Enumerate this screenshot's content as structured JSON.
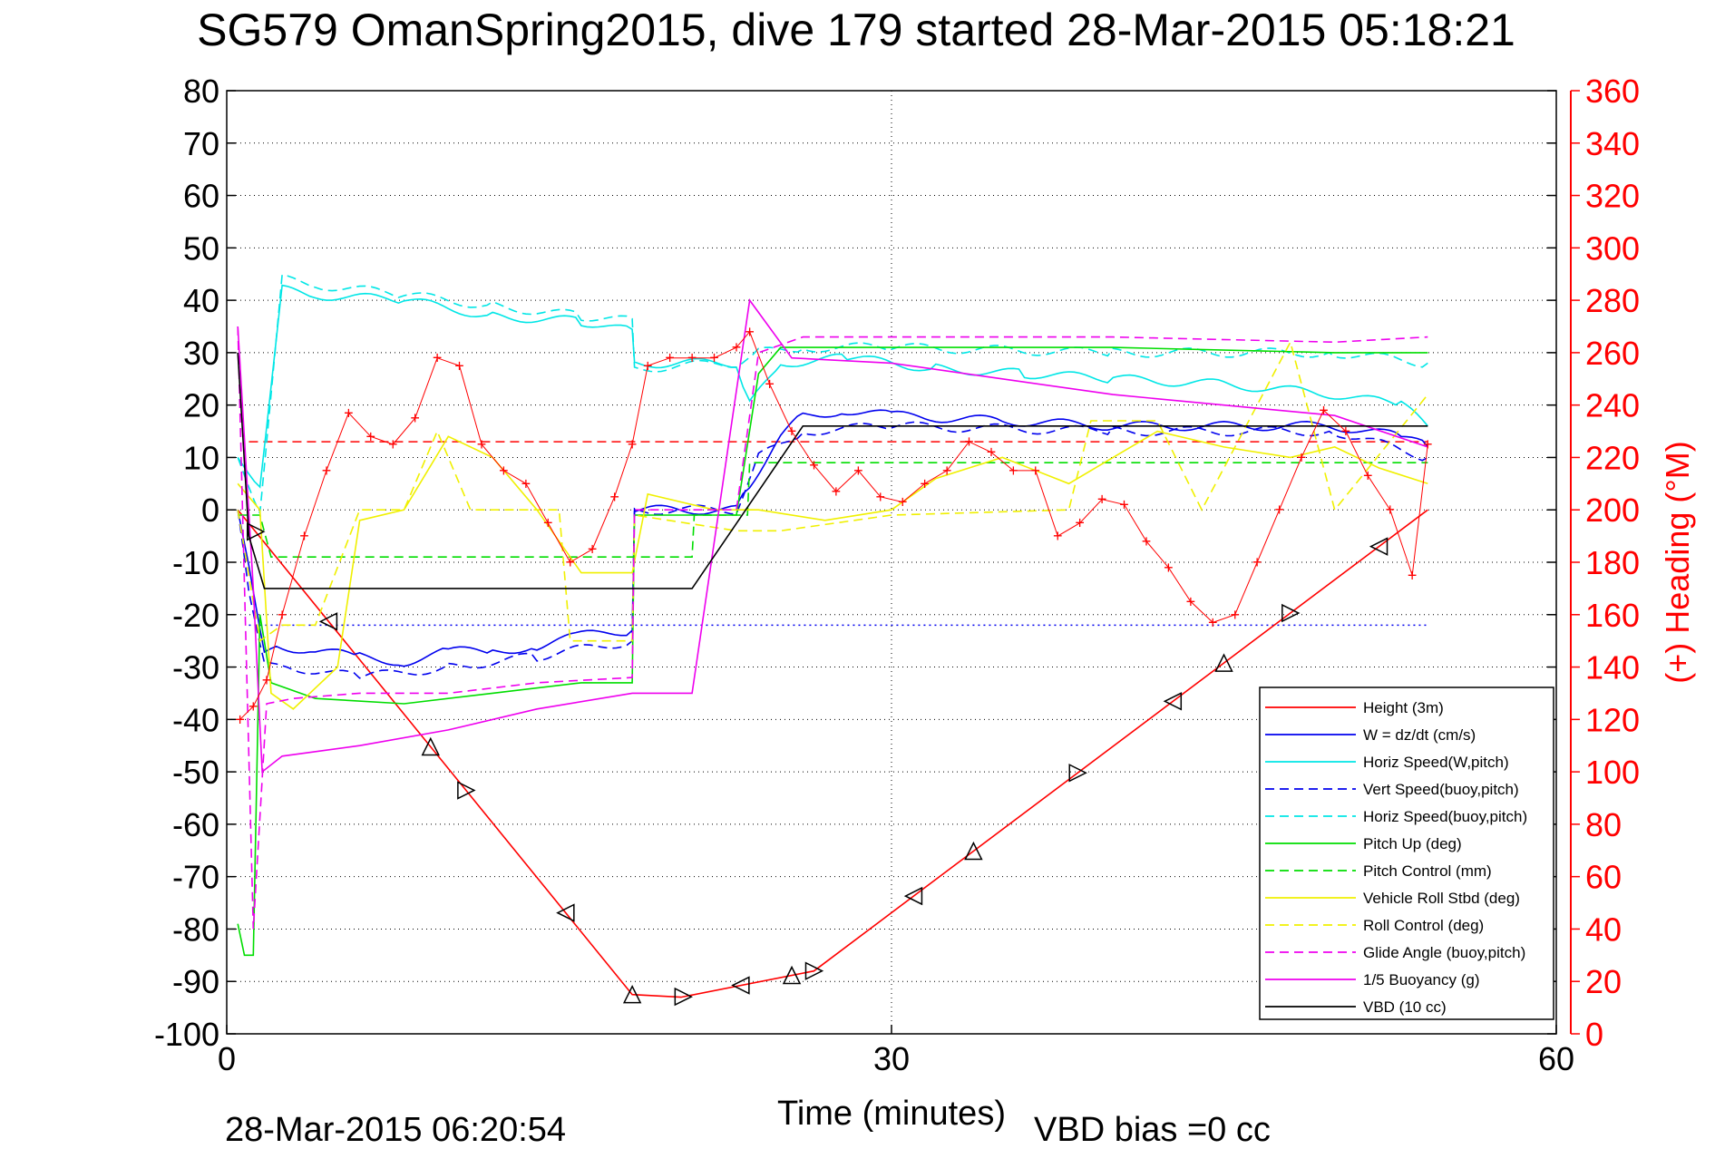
{
  "title": "SG579 OmanSpring2015, dive 179 started 28-Mar-2015 05:18:21",
  "footer_date": "28-Mar-2015 06:20:54",
  "footer_vbd": "VBD bias =0 cc",
  "chart_data": {
    "type": "line",
    "title": "SG579 OmanSpring2015, dive 179 started 28-Mar-2015 05:18:21",
    "xlabel": "Time (minutes)",
    "ylabel": "",
    "y2label": "(+) Heading (°M)",
    "xlim": [
      0,
      60
    ],
    "ylim": [
      -100,
      80
    ],
    "y2lim": [
      0,
      360
    ],
    "xticks": [
      0,
      30,
      60
    ],
    "yticks": [
      80,
      70,
      60,
      50,
      40,
      30,
      20,
      10,
      0,
      -10,
      -20,
      -30,
      -40,
      -50,
      -60,
      -70,
      -80,
      -90,
      -100
    ],
    "y2ticks": [
      360,
      340,
      320,
      300,
      280,
      260,
      240,
      220,
      200,
      180,
      160,
      140,
      120,
      100,
      80,
      60,
      40,
      20,
      0
    ],
    "grid": "dotted at x=30, y=-90..70 (10 step)",
    "legend_position": "bottom-right",
    "colors": {
      "red": "#ff0000",
      "blue": "#0000ee",
      "cyan": "#00e6e6",
      "green": "#00dd00",
      "yellow": "#f0f000",
      "magenta": "#ee00ee",
      "black": "#000000"
    },
    "series": [
      {
        "name": "Height (3m)",
        "color": "red",
        "style": "solid",
        "x": [
          0.5,
          18.3,
          20.5,
          26.5,
          54.2
        ],
        "y": [
          0,
          -92.5,
          -93,
          -88,
          0
        ]
      },
      {
        "name": "W = dz/dt (cm/s)",
        "color": "blue",
        "style": "solid",
        "x": [
          0.5,
          1.0,
          1.7,
          2.5,
          4,
          6,
          8,
          10,
          12,
          14,
          16,
          18.3,
          18.4,
          23,
          23.6,
          25,
          26,
          28,
          30,
          35,
          40,
          45,
          50,
          53,
          54.2
        ],
        "y": [
          0,
          -10,
          -28,
          -26,
          -27,
          -28,
          -29,
          -27,
          -27,
          -26,
          -24,
          -23,
          0,
          0,
          5,
          14,
          18,
          19,
          18,
          17,
          16,
          16,
          16,
          14,
          12
        ]
      },
      {
        "name": "Horiz Speed(W,pitch)",
        "color": "cyan",
        "style": "solid",
        "x": [
          0.5,
          1.5,
          2.5,
          4,
          8,
          12,
          16,
          18.3,
          18.4,
          23,
          23.6,
          25,
          28,
          32,
          36,
          40,
          45,
          50,
          53,
          54.2
        ],
        "y": [
          10,
          5,
          42,
          41,
          40,
          37,
          36,
          34,
          28,
          28,
          20,
          28,
          29,
          27,
          26,
          25,
          24,
          22,
          20,
          16
        ]
      },
      {
        "name": "Vert Speed(buoy,pitch)",
        "color": "blue",
        "style": "dashed",
        "x": [
          0.5,
          1.0,
          1.7,
          3,
          6,
          10,
          14,
          18.3,
          18.4,
          23,
          24,
          26,
          30,
          40,
          50,
          54.2
        ],
        "y": [
          0,
          -15,
          -30,
          -30,
          -32,
          -30,
          -28,
          -25,
          0,
          0,
          10,
          15,
          16,
          15,
          15,
          10
        ]
      },
      {
        "name": "Horiz Speed(buoy,pitch)",
        "color": "cyan",
        "style": "dashed",
        "x": [
          0.5,
          1.5,
          2.5,
          4,
          8,
          12,
          16,
          18.3,
          18.4,
          23,
          24,
          26,
          30,
          40,
          50,
          54.2
        ],
        "y": [
          10,
          0,
          44,
          43,
          41,
          39,
          37,
          36,
          27,
          28,
          30,
          31,
          31,
          30,
          30,
          28
        ]
      },
      {
        "name": "Pitch Up (deg)",
        "color": "green",
        "style": "solid",
        "x": [
          0.5,
          0.8,
          1.2,
          1.5,
          2,
          4,
          8,
          12,
          16,
          18.3,
          18.4,
          23,
          24,
          25,
          30,
          40,
          50,
          54.2
        ],
        "y": [
          -79,
          -85,
          -85,
          -20,
          -33,
          -36,
          -37,
          -35,
          -33,
          -33,
          -1,
          -1,
          26,
          31,
          31,
          31,
          30,
          30
        ]
      },
      {
        "name": "Pitch Control (mm)",
        "color": "green",
        "style": "dashed",
        "x": [
          0.5,
          1.5,
          2,
          14,
          21,
          21.1,
          23.5,
          23.6,
          54.2
        ],
        "y": [
          -1,
          -1,
          -9,
          -9,
          -9,
          -1,
          -1,
          9,
          9
        ]
      },
      {
        "name": "Vehicle Roll Stbd (deg)",
        "color": "yellow",
        "style": "solid",
        "x": [
          0.5,
          1.5,
          2,
          3,
          5,
          6,
          8,
          10,
          12,
          14,
          16,
          18.3,
          19,
          22,
          24,
          27,
          30,
          32,
          35,
          38,
          40,
          42,
          45,
          48,
          50,
          52,
          54.2
        ],
        "y": [
          5,
          0,
          -35,
          -38,
          -30,
          -2,
          0,
          14,
          10,
          0,
          -12,
          -12,
          3,
          0,
          0,
          -2,
          0,
          6,
          10,
          5,
          10,
          15,
          12,
          10,
          12,
          8,
          5
        ]
      },
      {
        "name": "Roll Control (deg)",
        "color": "yellow",
        "style": "dashed",
        "x": [
          0.5,
          1.5,
          2.5,
          4,
          6,
          8,
          9.5,
          11,
          13,
          15,
          15.5,
          18.3,
          18.4,
          23,
          25,
          30,
          38,
          39,
          42,
          44,
          48,
          50,
          54.2
        ],
        "y": [
          0,
          -25,
          -22,
          -22,
          0,
          0,
          15,
          0,
          0,
          0,
          -25,
          -25,
          -1,
          -4,
          -4,
          -1,
          0,
          17,
          17,
          0,
          32,
          0,
          22
        ]
      },
      {
        "name": "Glide Angle (buoy,pitch)",
        "color": "magenta",
        "style": "dashed",
        "x": [
          0.5,
          1.2,
          1.8,
          3,
          6,
          10,
          14,
          18.3,
          18.4,
          23,
          24,
          26,
          30,
          40,
          50,
          54.2
        ],
        "y": [
          35,
          -80,
          -37,
          -36,
          -35,
          -35,
          -33,
          -32,
          0,
          0,
          30,
          33,
          33,
          33,
          32,
          33
        ]
      },
      {
        "name": "1/5 Buoyancy (g)",
        "color": "magenta",
        "style": "solid",
        "x": [
          0.5,
          1.2,
          1.6,
          2.5,
          6,
          10,
          14,
          18.3,
          21,
          23.6,
          25.5,
          30,
          35,
          40,
          45,
          50,
          54.2
        ],
        "y": [
          35,
          -15,
          -50,
          -47,
          -45,
          -42,
          -38,
          -35,
          -35,
          40,
          29,
          28,
          25,
          22,
          20,
          18,
          12
        ]
      },
      {
        "name": "VBD (10 cc)",
        "color": "black",
        "style": "solid",
        "x": [
          0.5,
          1.0,
          1.7,
          4,
          14,
          21,
          26,
          54.2
        ],
        "y": [
          30,
          -5,
          -15,
          -15,
          -15,
          -15,
          16,
          16
        ]
      }
    ],
    "heading_points": {
      "name": "(+) Heading",
      "color": "red",
      "marker": "+",
      "x": [
        0.6,
        1.2,
        1.8,
        2.5,
        3.5,
        4.5,
        5.5,
        6.5,
        7.5,
        8.5,
        9.5,
        10.5,
        11.5,
        12.5,
        13.5,
        14.5,
        15.5,
        16.5,
        17.5,
        18.3,
        19,
        20,
        21,
        22,
        23,
        23.6,
        24.5,
        25.5,
        26.5,
        27.5,
        28.5,
        29.5,
        30.5,
        31.5,
        32.5,
        33.5,
        34.5,
        35.5,
        36.5,
        37.5,
        38.5,
        39.5,
        40.5,
        41.5,
        42.5,
        43.5,
        44.5,
        45.5,
        46.5,
        47.5,
        48.5,
        49.5,
        50.5,
        51.5,
        52.5,
        53.5,
        54.2
      ],
      "y": [
        120,
        125,
        135,
        160,
        190,
        215,
        237,
        228,
        225,
        235,
        258,
        255,
        225,
        215,
        210,
        195,
        180,
        185,
        205,
        225,
        255,
        258,
        258,
        258,
        262,
        268,
        248,
        230,
        217,
        207,
        215,
        205,
        203,
        210,
        215,
        226,
        222,
        215,
        215,
        190,
        195,
        204,
        202,
        188,
        178,
        165,
        157,
        160,
        180,
        200,
        220,
        238,
        230,
        213,
        200,
        175,
        225
      ]
    },
    "reference_lines": [
      {
        "color": "red",
        "style": "dashed",
        "y": 13
      },
      {
        "color": "blue",
        "style": "dotted",
        "y": -22
      }
    ]
  }
}
